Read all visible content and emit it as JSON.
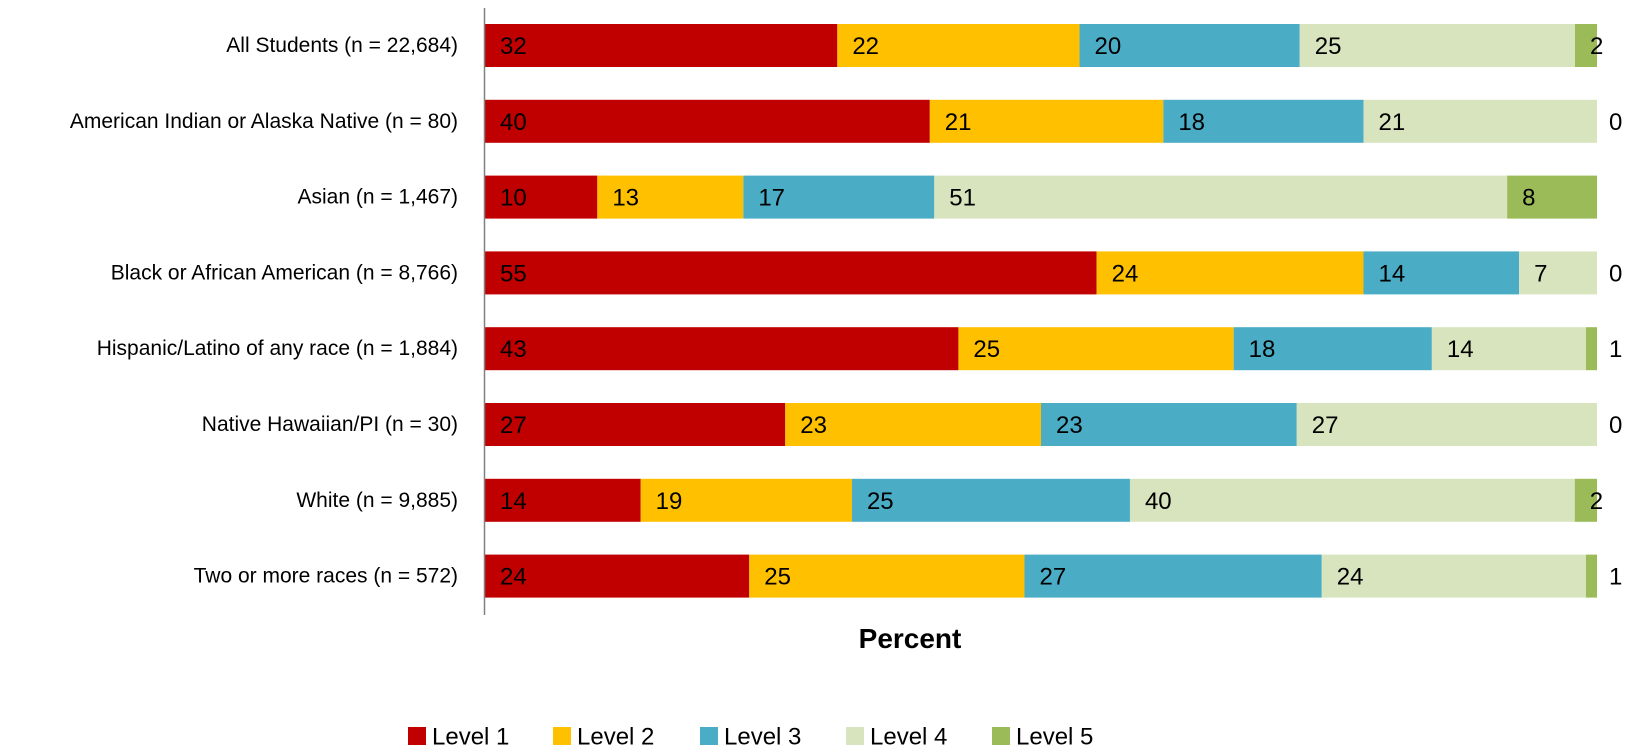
{
  "chart_data": {
    "type": "bar",
    "orientation": "horizontal",
    "stacked": true,
    "categories": [
      "All Students (n = 22,684)",
      "American Indian or Alaska Native (n = 80)",
      "Asian (n = 1,467)",
      "Black or African American (n = 8,766)",
      "Hispanic/Latino of any race (n = 1,884)",
      "Native Hawaiian/PI (n = 30)",
      "White (n = 9,885)",
      "Two or more races (n = 572)"
    ],
    "series": [
      {
        "name": "Level 1",
        "color": "#c00000",
        "values": [
          32,
          40,
          10,
          55,
          43,
          27,
          14,
          24
        ]
      },
      {
        "name": "Level 2",
        "color": "#ffc000",
        "values": [
          22,
          21,
          13,
          24,
          25,
          23,
          19,
          25
        ]
      },
      {
        "name": "Level 3",
        "color": "#4bacc6",
        "values": [
          20,
          18,
          17,
          14,
          18,
          23,
          25,
          27
        ]
      },
      {
        "name": "Level 4",
        "color": "#d7e4bd",
        "values": [
          25,
          21,
          51,
          7,
          14,
          27,
          40,
          24
        ]
      },
      {
        "name": "Level 5",
        "color": "#9bbb59",
        "values": [
          2,
          0,
          8,
          0,
          1,
          0,
          2,
          1
        ]
      }
    ],
    "xlabel": "Percent",
    "ylabel": "",
    "xlim": [
      0,
      100
    ],
    "grid": false,
    "legend_position": "bottom"
  }
}
